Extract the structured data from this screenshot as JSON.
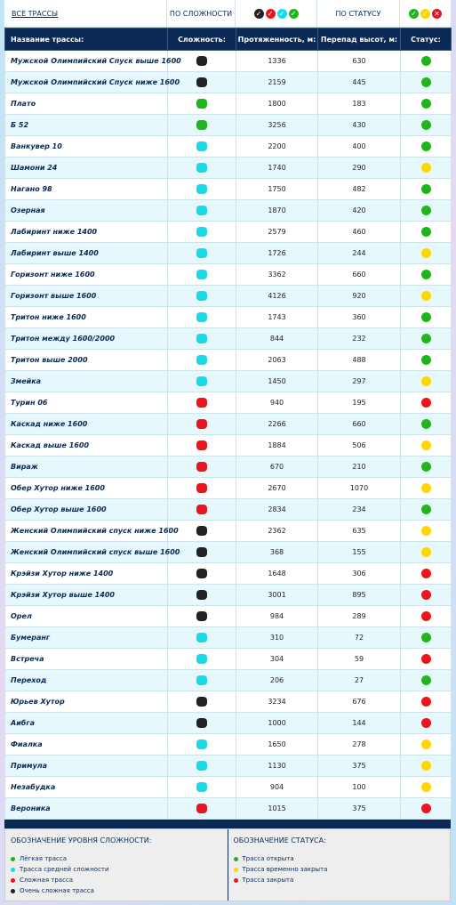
{
  "filters": {
    "all": "ВСЕ ТРАССЫ",
    "by_difficulty": "ПО СЛОЖНОСТИ",
    "by_status": "ПО СТАТУСУ"
  },
  "table": {
    "columns": [
      "Название трассы:",
      "Сложность:",
      "Протяженность, м:",
      "Перепад высот, м:",
      "Статус:"
    ],
    "rows": [
      {
        "name": "Мужской Олимпийский Спуск выше 1600",
        "difficulty": "#222222",
        "length": 1336,
        "drop": 630,
        "status": "#1fb51f"
      },
      {
        "name": "Мужской Олимпийский Спуск ниже 1600",
        "difficulty": "#222222",
        "length": 2159,
        "drop": 445,
        "status": "#1fb51f"
      },
      {
        "name": "Плато",
        "difficulty": "#1fb51f",
        "length": 1800,
        "drop": 183,
        "status": "#1fb51f"
      },
      {
        "name": "Б 52",
        "difficulty": "#1fb51f",
        "length": 3256,
        "drop": 430,
        "status": "#1fb51f"
      },
      {
        "name": "Ванкувер 10",
        "difficulty": "#1ad9e6",
        "length": 2200,
        "drop": 400,
        "status": "#1fb51f"
      },
      {
        "name": "Шамони 24",
        "difficulty": "#1ad9e6",
        "length": 1740,
        "drop": 290,
        "status": "#ffd400"
      },
      {
        "name": "Нагано 98",
        "difficulty": "#1ad9e6",
        "length": 1750,
        "drop": 482,
        "status": "#1fb51f"
      },
      {
        "name": "Озерная",
        "difficulty": "#1ad9e6",
        "length": 1870,
        "drop": 420,
        "status": "#1fb51f"
      },
      {
        "name": "Лабиринт ниже 1400",
        "difficulty": "#1ad9e6",
        "length": 2579,
        "drop": 460,
        "status": "#1fb51f"
      },
      {
        "name": "Лабиринт выше 1400",
        "difficulty": "#1ad9e6",
        "length": 1726,
        "drop": 244,
        "status": "#ffd400"
      },
      {
        "name": "Горизонт ниже 1600",
        "difficulty": "#1ad9e6",
        "length": 3362,
        "drop": 660,
        "status": "#1fb51f"
      },
      {
        "name": "Горизонт выше 1600",
        "difficulty": "#1ad9e6",
        "length": 4126,
        "drop": 920,
        "status": "#ffd400"
      },
      {
        "name": "Тритон ниже 1600",
        "difficulty": "#1ad9e6",
        "length": 1743,
        "drop": 360,
        "status": "#1fb51f"
      },
      {
        "name": "Тритон между 1600/2000",
        "difficulty": "#1ad9e6",
        "length": 844,
        "drop": 232,
        "status": "#1fb51f"
      },
      {
        "name": "Тритон выше 2000",
        "difficulty": "#1ad9e6",
        "length": 2063,
        "drop": 488,
        "status": "#1fb51f"
      },
      {
        "name": "Змейка",
        "difficulty": "#1ad9e6",
        "length": 1450,
        "drop": 297,
        "status": "#ffd400"
      },
      {
        "name": "Турин 06",
        "difficulty": "#e8141e",
        "length": 940,
        "drop": 195,
        "status": "#e8141e"
      },
      {
        "name": "Каскад ниже 1600",
        "difficulty": "#e8141e",
        "length": 2266,
        "drop": 660,
        "status": "#1fb51f"
      },
      {
        "name": "Каскад выше 1600",
        "difficulty": "#e8141e",
        "length": 1884,
        "drop": 506,
        "status": "#ffd400"
      },
      {
        "name": "Вираж",
        "difficulty": "#e8141e",
        "length": 670,
        "drop": 210,
        "status": "#1fb51f"
      },
      {
        "name": "Обер Хутор ниже 1600",
        "difficulty": "#e8141e",
        "length": 2670,
        "drop": 1070,
        "status": "#ffd400"
      },
      {
        "name": "Обер Хутор выше 1600",
        "difficulty": "#e8141e",
        "length": 2834,
        "drop": 234,
        "status": "#1fb51f"
      },
      {
        "name": "Женский Олимпийский спуск ниже 1600",
        "difficulty": "#222222",
        "length": 2362,
        "drop": 635,
        "status": "#ffd400"
      },
      {
        "name": "Женский Олимпийский спуск выше 1600",
        "difficulty": "#222222",
        "length": 368,
        "drop": 155,
        "status": "#ffd400"
      },
      {
        "name": "Крэйзи Хутор ниже 1400",
        "difficulty": "#222222",
        "length": 1648,
        "drop": 306,
        "status": "#e8141e"
      },
      {
        "name": "Крэйзи Хутор выше 1400",
        "difficulty": "#222222",
        "length": 3001,
        "drop": 895,
        "status": "#e8141e"
      },
      {
        "name": "Орел",
        "difficulty": "#222222",
        "length": 984,
        "drop": 289,
        "status": "#e8141e"
      },
      {
        "name": "Бумеранг",
        "difficulty": "#1ad9e6",
        "length": 310,
        "drop": 72,
        "status": "#1fb51f"
      },
      {
        "name": "Встреча",
        "difficulty": "#1ad9e6",
        "length": 304,
        "drop": 59,
        "status": "#e8141e"
      },
      {
        "name": "Переход",
        "difficulty": "#1ad9e6",
        "length": 206,
        "drop": 27,
        "status": "#1fb51f"
      },
      {
        "name": "Юрьев Хутор",
        "difficulty": "#222222",
        "length": 3234,
        "drop": 676,
        "status": "#e8141e"
      },
      {
        "name": "Аибга",
        "difficulty": "#222222",
        "length": 1000,
        "drop": 144,
        "status": "#e8141e"
      },
      {
        "name": "Фиалка",
        "difficulty": "#1ad9e6",
        "length": 1650,
        "drop": 278,
        "status": "#ffd400"
      },
      {
        "name": "Примула",
        "difficulty": "#1ad9e6",
        "length": 1130,
        "drop": 375,
        "status": "#ffd400"
      },
      {
        "name": "Незабудка",
        "difficulty": "#1ad9e6",
        "length": 904,
        "drop": 100,
        "status": "#ffd400"
      },
      {
        "name": "Вероника",
        "difficulty": "#e8141e",
        "length": 1015,
        "drop": 375,
        "status": "#e8141e"
      }
    ]
  },
  "legend": {
    "difficulty": {
      "title": "ОБОЗНАЧЕНИЕ УРОВНЯ СЛОЖНОСТИ:",
      "items": [
        {
          "label": "Лёгкая трасса",
          "color": "#1fb51f"
        },
        {
          "label": "Трасса средней сложности",
          "color": "#1ad9e6"
        },
        {
          "label": "Сложная трасса",
          "color": "#e8141e"
        },
        {
          "label": "Очень сложная трасса",
          "color": "#222222"
        }
      ]
    },
    "status": {
      "title": "ОБОЗНАЧЕНИЕ СТАТУСА:",
      "items": [
        {
          "label": "Трасса открыта",
          "color": "#1fb51f"
        },
        {
          "label": "Трасса временно закрыта",
          "color": "#ffd400"
        },
        {
          "label": "Трасса закрыта",
          "color": "#e8141e"
        }
      ]
    }
  }
}
